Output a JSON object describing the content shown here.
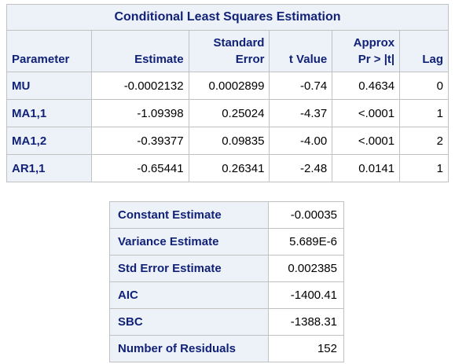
{
  "param_table": {
    "title": "Conditional Least Squares Estimation",
    "headers": {
      "parameter": "Parameter",
      "estimate": "Estimate",
      "std_error_line1": "Standard",
      "std_error_line2": "Error",
      "t_value": "t Value",
      "pr_line1": "Approx",
      "pr_line2": "Pr > |t|",
      "lag": "Lag"
    },
    "rows": [
      {
        "parameter": "MU",
        "estimate": "-0.0002132",
        "std_error": "0.0002899",
        "t_value": "-0.74",
        "pr": "0.4634",
        "lag": "0"
      },
      {
        "parameter": "MA1,1",
        "estimate": "-1.09398",
        "std_error": "0.25024",
        "t_value": "-4.37",
        "pr": "<.0001",
        "lag": "1"
      },
      {
        "parameter": "MA1,2",
        "estimate": "-0.39377",
        "std_error": "0.09835",
        "t_value": "-4.00",
        "pr": "<.0001",
        "lag": "2"
      },
      {
        "parameter": "AR1,1",
        "estimate": "-0.65441",
        "std_error": "0.26341",
        "t_value": "-2.48",
        "pr": "0.0141",
        "lag": "1"
      }
    ]
  },
  "stats_table": {
    "rows": [
      {
        "label": "Constant Estimate",
        "value": "-0.00035"
      },
      {
        "label": "Variance Estimate",
        "value": "5.689E-6"
      },
      {
        "label": "Std Error Estimate",
        "value": "0.002385"
      },
      {
        "label": "AIC",
        "value": "-1400.41"
      },
      {
        "label": "SBC",
        "value": "-1388.31"
      },
      {
        "label": "Number of Residuals",
        "value": "152"
      }
    ]
  },
  "colors": {
    "header_background": "#edf2f9",
    "header_text": "#112277",
    "border": "#c1c1c1",
    "value_text": "#000000"
  }
}
